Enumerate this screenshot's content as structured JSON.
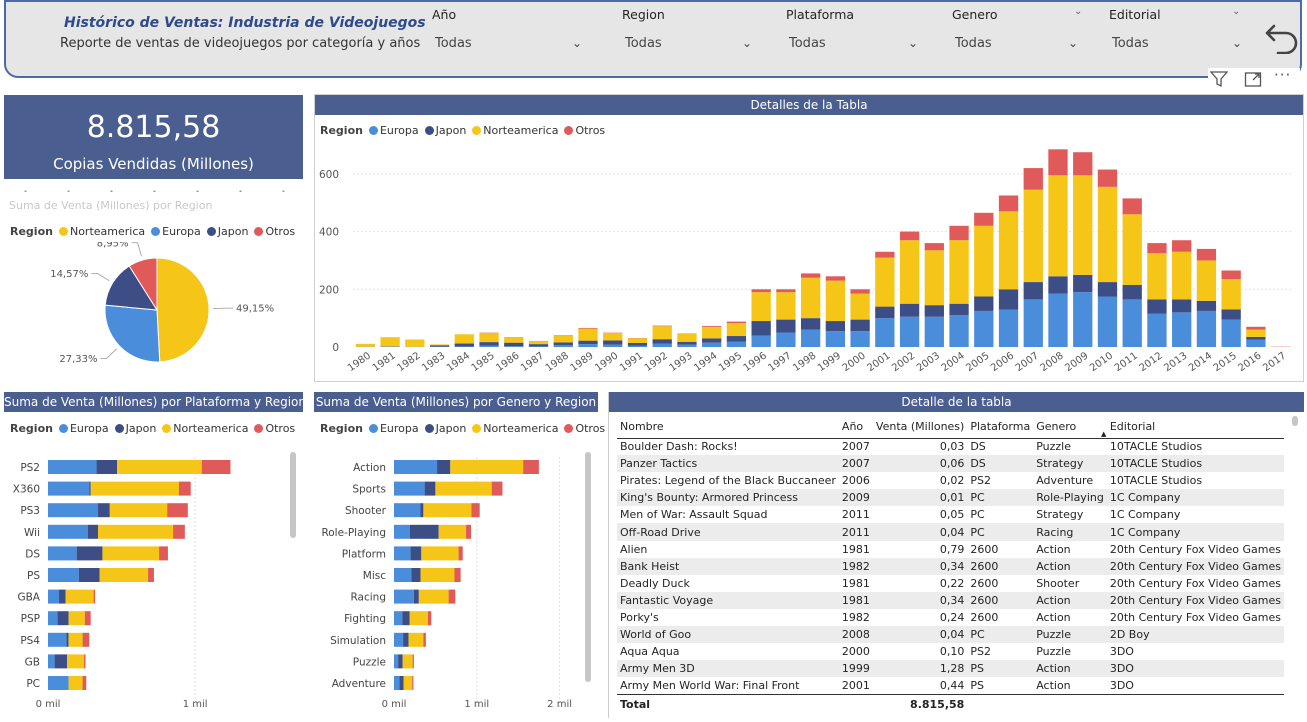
{
  "header": {
    "title": "Histórico de Ventas: Industria de Videojuegos",
    "subtitle": "Reporte de ventas de videojuegos por categoría y años",
    "slicers": [
      {
        "label": "Año",
        "value": "Todas"
      },
      {
        "label": "Region",
        "value": "Todas"
      },
      {
        "label": "Plataforma",
        "value": "Todas"
      },
      {
        "label": "Genero",
        "value": "Todas"
      },
      {
        "label": "Editorial",
        "value": "Todas"
      }
    ],
    "icons": [
      "back-arrow-icon",
      "filter-icon",
      "focus-mode-icon",
      "more-options-icon"
    ]
  },
  "kpi": {
    "value": "8.815,58",
    "label": "Copias Vendidas (Millones)"
  },
  "colors": {
    "Europa": "#4a8ddb",
    "Japon": "#3d4e86",
    "Norteamerica": "#f5c518",
    "Otros": "#e05a5a",
    "panel_header": "#4a5f8f"
  },
  "legend_title": "Region",
  "chart_data": [
    {
      "type": "pie",
      "title": "Suma de Venta (Millones) por Region",
      "legend_order": [
        "Norteamerica",
        "Europa",
        "Japon",
        "Otros"
      ],
      "categories": [
        "Norteamerica",
        "Europa",
        "Japon",
        "Otros"
      ],
      "values": [
        49.15,
        27.33,
        14.57,
        8.95
      ],
      "labels": [
        "49,15%",
        "27,33%",
        "14,57%",
        "8,95%"
      ]
    },
    {
      "type": "bar",
      "stacked": true,
      "title": "Detalles de la Tabla",
      "legend_order": [
        "Europa",
        "Japon",
        "Norteamerica",
        "Otros"
      ],
      "categories": [
        "1980",
        "1981",
        "1982",
        "1983",
        "1984",
        "1985",
        "1986",
        "1987",
        "1988",
        "1989",
        "1990",
        "1991",
        "1992",
        "1993",
        "1994",
        "1995",
        "1996",
        "1997",
        "1998",
        "1999",
        "2000",
        "2001",
        "2002",
        "2003",
        "2004",
        "2005",
        "2006",
        "2007",
        "2008",
        "2009",
        "2010",
        "2011",
        "2012",
        "2013",
        "2014",
        "2015",
        "2016",
        "2017"
      ],
      "ylim": [
        0,
        700
      ],
      "yticks": [
        0,
        200,
        400,
        600
      ],
      "series": [
        {
          "name": "Europa",
          "values": [
            1,
            2,
            1,
            1,
            2,
            5,
            3,
            2,
            6,
            10,
            8,
            4,
            12,
            8,
            15,
            18,
            40,
            50,
            60,
            55,
            55,
            100,
            105,
            105,
            110,
            125,
            130,
            165,
            185,
            190,
            175,
            165,
            115,
            120,
            125,
            95,
            25,
            0
          ]
        },
        {
          "name": "Japon",
          "values": [
            0,
            0,
            0,
            5,
            10,
            12,
            12,
            8,
            10,
            12,
            15,
            10,
            15,
            10,
            15,
            20,
            50,
            45,
            40,
            35,
            40,
            40,
            45,
            40,
            40,
            50,
            70,
            60,
            60,
            60,
            50,
            50,
            50,
            45,
            35,
            35,
            10,
            0
          ]
        },
        {
          "name": "Norteamerica",
          "values": [
            10,
            32,
            25,
            3,
            32,
            32,
            18,
            10,
            24,
            42,
            26,
            16,
            45,
            28,
            40,
            45,
            100,
            95,
            140,
            140,
            90,
            170,
            220,
            190,
            220,
            245,
            270,
            320,
            350,
            345,
            330,
            245,
            160,
            165,
            140,
            105,
            25,
            0
          ]
        },
        {
          "name": "Otros",
          "values": [
            0,
            0,
            0,
            0,
            0,
            1,
            1,
            1,
            1,
            2,
            1,
            1,
            2,
            1,
            3,
            5,
            10,
            10,
            15,
            15,
            15,
            20,
            30,
            25,
            50,
            45,
            55,
            75,
            90,
            80,
            60,
            55,
            35,
            40,
            40,
            30,
            10,
            1
          ]
        }
      ]
    },
    {
      "type": "bar",
      "orientation": "horizontal",
      "stacked": true,
      "title": "Suma de Venta (Millones) por Plataforma y Region",
      "legend_order": [
        "Europa",
        "Japon",
        "Norteamerica",
        "Otros"
      ],
      "categories": [
        "PS2",
        "X360",
        "PS3",
        "Wii",
        "DS",
        "PS",
        "GBA",
        "PSP",
        "PS4",
        "GB",
        "PC"
      ],
      "xlim": [
        0,
        1400
      ],
      "xticks": [
        {
          "v": 0,
          "l": "0 mil"
        },
        {
          "v": 1000,
          "l": "1 mil"
        }
      ],
      "series": [
        {
          "name": "Europa",
          "values": [
            330,
            280,
            340,
            270,
            195,
            210,
            75,
            65,
            125,
            45,
            140
          ]
        },
        {
          "name": "Japon",
          "values": [
            140,
            10,
            80,
            70,
            175,
            140,
            45,
            75,
            15,
            85,
            0
          ]
        },
        {
          "name": "Norteamerica",
          "values": [
            575,
            600,
            390,
            510,
            385,
            330,
            190,
            110,
            95,
            115,
            95
          ]
        },
        {
          "name": "Otros",
          "values": [
            195,
            80,
            140,
            80,
            60,
            40,
            10,
            40,
            45,
            10,
            25
          ]
        }
      ]
    },
    {
      "type": "bar",
      "orientation": "horizontal",
      "stacked": true,
      "title": "Suma de Venta (Millones) por Genero y Region",
      "legend_order": [
        "Europa",
        "Japon",
        "Norteamerica",
        "Otros"
      ],
      "categories": [
        "Action",
        "Sports",
        "Shooter",
        "Role-Playing",
        "Platform",
        "Misc",
        "Racing",
        "Fighting",
        "Simulation",
        "Puzzle",
        "Adventure"
      ],
      "xlim": [
        0,
        2150
      ],
      "xticks": [
        {
          "v": 0,
          "l": "0 mil"
        },
        {
          "v": 1000,
          "l": "1 mil"
        },
        {
          "v": 2000,
          "l": "2 mil"
        }
      ],
      "series": [
        {
          "name": "Europa",
          "values": [
            520,
            370,
            320,
            190,
            200,
            210,
            240,
            100,
            110,
            50,
            65
          ]
        },
        {
          "name": "Japon",
          "values": [
            160,
            130,
            35,
            350,
            130,
            110,
            60,
            90,
            65,
            55,
            50
          ]
        },
        {
          "name": "Norteamerica",
          "values": [
            880,
            680,
            580,
            330,
            450,
            410,
            360,
            220,
            180,
            120,
            105
          ]
        },
        {
          "name": "Otros",
          "values": [
            190,
            130,
            100,
            60,
            50,
            75,
            80,
            40,
            30,
            15,
            15
          ]
        }
      ]
    }
  ],
  "table": {
    "title": "Detalle de la tabla",
    "columns": [
      "Nombre",
      "Año",
      "Venta (Millones)",
      "Plataforma",
      "Genero",
      "Editorial"
    ],
    "rows": [
      [
        "Boulder Dash: Rocks!",
        "2007",
        "0,03",
        "DS",
        "Puzzle",
        "10TACLE Studios"
      ],
      [
        "Panzer Tactics",
        "2007",
        "0,06",
        "DS",
        "Strategy",
        "10TACLE Studios"
      ],
      [
        "Pirates: Legend of the Black Buccaneer",
        "2006",
        "0,02",
        "PS2",
        "Adventure",
        "10TACLE Studios"
      ],
      [
        "King's Bounty: Armored Princess",
        "2009",
        "0,01",
        "PC",
        "Role-Playing",
        "1C Company"
      ],
      [
        "Men of War: Assault Squad",
        "2011",
        "0,05",
        "PC",
        "Strategy",
        "1C Company"
      ],
      [
        "Off-Road Drive",
        "2011",
        "0,04",
        "PC",
        "Racing",
        "1C Company"
      ],
      [
        "Alien",
        "1981",
        "0,79",
        "2600",
        "Action",
        "20th Century Fox Video Games"
      ],
      [
        "Bank Heist",
        "1982",
        "0,34",
        "2600",
        "Action",
        "20th Century Fox Video Games"
      ],
      [
        "Deadly Duck",
        "1981",
        "0,22",
        "2600",
        "Shooter",
        "20th Century Fox Video Games"
      ],
      [
        "Fantastic Voyage",
        "1981",
        "0,34",
        "2600",
        "Action",
        "20th Century Fox Video Games"
      ],
      [
        "Porky's",
        "1982",
        "0,24",
        "2600",
        "Action",
        "20th Century Fox Video Games"
      ],
      [
        "World of Goo",
        "2008",
        "0,04",
        "PC",
        "Puzzle",
        "2D Boy"
      ],
      [
        "Aqua Aqua",
        "2000",
        "0,10",
        "PS2",
        "Puzzle",
        "3DO"
      ],
      [
        "Army Men 3D",
        "1999",
        "1,28",
        "PS",
        "Action",
        "3DO"
      ],
      [
        "Army Men World War: Final Front",
        "2001",
        "0,44",
        "PS",
        "Action",
        "3DO"
      ]
    ],
    "total_label": "Total",
    "total_value": "8.815,58"
  }
}
